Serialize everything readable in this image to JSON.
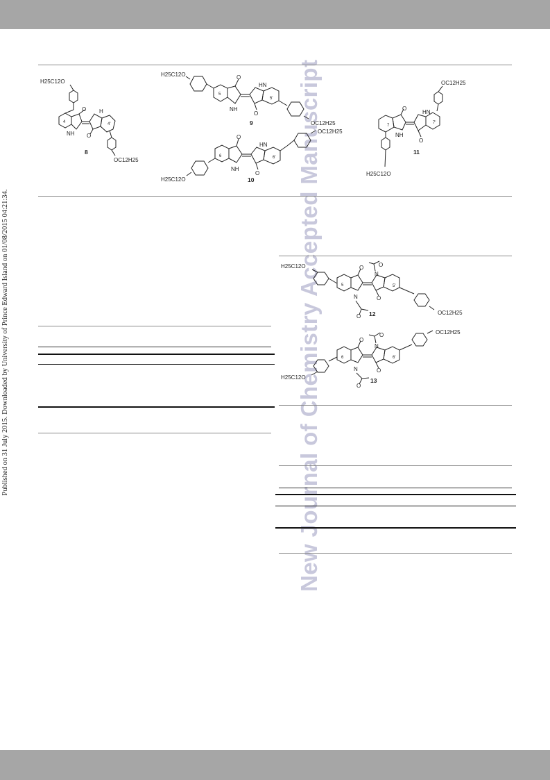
{
  "side_note": "Published on 31 July 2015. Downloaded by University of Prince Edward Island on 01/08/2015 04:21:34.",
  "watermark": "New Journal of Chemistry Accepted Manuscript",
  "colors": {
    "header_bar": "#a6a6a6",
    "watermark": "#c8c8dc",
    "rule": "#888888"
  },
  "structures": {
    "s8": {
      "label": "8",
      "chain_top": "H25C12O",
      "chain_bottom": "OC12H25",
      "locant_a": "4",
      "locant_b": "4'"
    },
    "s9": {
      "label": "9",
      "chain_left": "H25C12O",
      "chain_right": "OC12H25",
      "locant_a": "5",
      "locant_b": "5'"
    },
    "s10": {
      "label": "10",
      "chain_left": "H25C12O",
      "chain_right": "OC12H25",
      "locant_a": "6",
      "locant_b": "6'"
    },
    "s11": {
      "label": "11",
      "chain_top": "OC12H25",
      "chain_bottom": "H25C12O",
      "locant_a": "7",
      "locant_b": "7'"
    },
    "s12": {
      "label": "12",
      "chain_left": "H25C12O",
      "chain_right": "OC12H25",
      "locant_a": "5",
      "locant_b": "5'"
    },
    "s13": {
      "label": "13",
      "chain_left": "H25C12O",
      "chain_right": "OC12H25",
      "locant_a": "6",
      "locant_b": "6'"
    }
  },
  "atoms": {
    "oxygen": "O",
    "nh": "NH",
    "hn": "HN",
    "h": "H",
    "n": "N"
  }
}
